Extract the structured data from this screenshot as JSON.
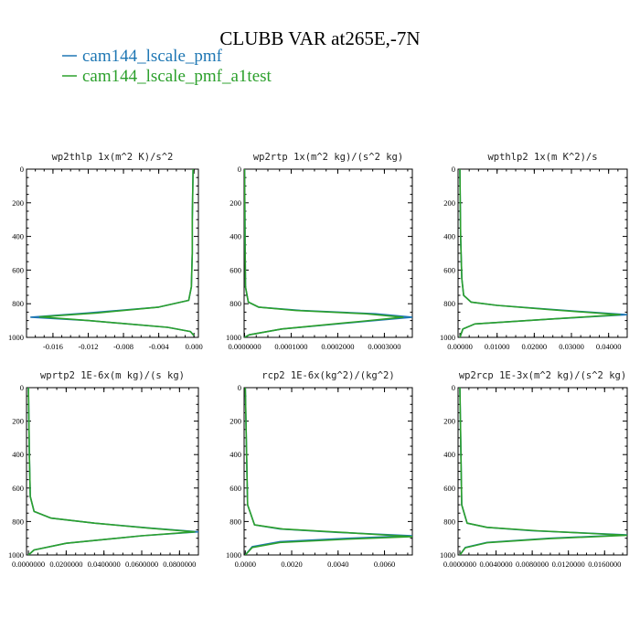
{
  "title": "CLUBB VAR at265E,-7N",
  "legend": [
    {
      "name": "cam144_lscale_pmf",
      "color": "#1f77b4"
    },
    {
      "name": "cam144_lscale_pmf_a1test",
      "color": "#2ca02c"
    }
  ],
  "chart_data": [
    {
      "type": "line",
      "title": "wp2thlp  1x(m^2 K)/s^2",
      "xlim": [
        -0.019,
        0.0005
      ],
      "ylim": [
        1000,
        0
      ],
      "y_inverted": true,
      "xticks": [
        -0.016,
        -0.012,
        -0.008,
        -0.004,
        0.0
      ],
      "xtick_labels": [
        "-0.016",
        "-0.012",
        "-0.008",
        "-0.004",
        "0.000"
      ],
      "yticks": [
        0,
        200,
        400,
        600,
        800,
        1000
      ],
      "ytick_labels": [
        "0",
        "200",
        "400",
        "600",
        "800",
        "1000"
      ],
      "series": [
        {
          "name": "cam144_lscale_pmf",
          "x": [
            -0.0001,
            -0.0002,
            -0.0002,
            -0.0003,
            -0.0006,
            -0.004,
            -0.012,
            -0.0185,
            -0.012,
            -0.003,
            -0.0004,
            0.0
          ],
          "y": [
            0,
            300,
            500,
            700,
            780,
            820,
            855,
            880,
            900,
            940,
            965,
            990
          ]
        },
        {
          "name": "cam144_lscale_pmf_a1test",
          "x": [
            -0.0001,
            -0.0002,
            -0.0002,
            -0.0003,
            -0.0006,
            -0.004,
            -0.011,
            -0.0175,
            -0.012,
            -0.003,
            -0.0004,
            0.0
          ],
          "y": [
            0,
            300,
            500,
            700,
            780,
            820,
            855,
            878,
            900,
            940,
            965,
            990
          ]
        }
      ]
    },
    {
      "type": "line",
      "title": "wp2rtp  1x(m^2 kg)/(s^2 kg)",
      "xlim": [
        -1e-06,
        0.00036
      ],
      "ylim": [
        1000,
        0
      ],
      "y_inverted": true,
      "xticks": [
        0.0,
        0.0001,
        0.0002,
        0.0003
      ],
      "xtick_labels": [
        "0.0000000",
        "0.0001000",
        "0.0002000",
        "0.0003000"
      ],
      "yticks": [
        0,
        200,
        400,
        600,
        800,
        1000
      ],
      "ytick_labels": [
        "0",
        "200",
        "400",
        "600",
        "800",
        "1000"
      ],
      "series": [
        {
          "name": "cam144_lscale_pmf",
          "x": [
            0.0,
            1e-06,
            2e-06,
            8e-06,
            3e-05,
            0.00012,
            0.00028,
            0.00036,
            0.00026,
            8e-05,
            1e-05,
            0.0
          ],
          "y": [
            0,
            400,
            700,
            790,
            820,
            840,
            860,
            880,
            905,
            950,
            985,
            1000
          ]
        },
        {
          "name": "cam144_lscale_pmf_a1test",
          "x": [
            0.0,
            1e-06,
            2e-06,
            8e-06,
            3e-05,
            0.00011,
            0.00026,
            0.00034,
            0.00025,
            8e-05,
            1e-05,
            0.0
          ],
          "y": [
            0,
            400,
            700,
            790,
            820,
            840,
            860,
            880,
            905,
            950,
            985,
            1000
          ]
        }
      ]
    },
    {
      "type": "line",
      "title": "wpthlp2  1x(m K^2)/s",
      "xlim": [
        -0.0005,
        0.045
      ],
      "ylim": [
        1000,
        0
      ],
      "y_inverted": true,
      "xticks": [
        0.0,
        0.01,
        0.02,
        0.03,
        0.04
      ],
      "xtick_labels": [
        "0.00000",
        "0.01000",
        "0.02000",
        "0.03000",
        "0.04000"
      ],
      "yticks": [
        0,
        200,
        400,
        600,
        800,
        1000
      ],
      "ytick_labels": [
        "0",
        "200",
        "400",
        "600",
        "800",
        "1000"
      ],
      "series": [
        {
          "name": "cam144_lscale_pmf",
          "x": [
            0.0,
            0.0002,
            0.0005,
            0.001,
            0.003,
            0.01,
            0.025,
            0.045,
            0.025,
            0.004,
            0.0008,
            0.0
          ],
          "y": [
            0,
            400,
            650,
            750,
            790,
            810,
            835,
            865,
            890,
            920,
            950,
            1000
          ]
        },
        {
          "name": "cam144_lscale_pmf_a1test",
          "x": [
            0.0,
            0.0002,
            0.0005,
            0.001,
            0.003,
            0.01,
            0.024,
            0.043,
            0.025,
            0.004,
            0.0008,
            0.0
          ],
          "y": [
            0,
            400,
            650,
            750,
            790,
            810,
            835,
            865,
            890,
            920,
            950,
            1000
          ]
        }
      ]
    },
    {
      "type": "line",
      "title": "wprtp2  1E-6x(m kg)/(s kg)",
      "xlim": [
        -0.001,
        0.09
      ],
      "ylim": [
        1000,
        0
      ],
      "y_inverted": true,
      "xticks": [
        0.0,
        0.02,
        0.04,
        0.06,
        0.08
      ],
      "xtick_labels": [
        "0.0000000",
        "0.0200000",
        "0.0400000",
        "0.0600000",
        "0.0800000"
      ],
      "yticks": [
        0,
        200,
        400,
        600,
        800,
        1000
      ],
      "ytick_labels": [
        "0",
        "200",
        "400",
        "600",
        "800",
        "1000"
      ],
      "series": [
        {
          "name": "cam144_lscale_pmf",
          "x": [
            0.0,
            0.0005,
            0.001,
            0.003,
            0.012,
            0.035,
            0.065,
            0.09,
            0.06,
            0.02,
            0.003,
            0.0
          ],
          "y": [
            0,
            400,
            650,
            740,
            780,
            810,
            840,
            862,
            885,
            930,
            970,
            1000
          ]
        },
        {
          "name": "cam144_lscale_pmf_a1test",
          "x": [
            0.0,
            0.0005,
            0.001,
            0.003,
            0.012,
            0.035,
            0.064,
            0.088,
            0.06,
            0.02,
            0.003,
            0.0
          ],
          "y": [
            0,
            400,
            650,
            740,
            780,
            810,
            840,
            862,
            885,
            930,
            970,
            1000
          ]
        }
      ]
    },
    {
      "type": "line",
      "title": "rcp2  1E-6x(kg^2)/(kg^2)",
      "xlim": [
        -5e-05,
        0.0072
      ],
      "ylim": [
        1000,
        0
      ],
      "y_inverted": true,
      "xticks": [
        0.0,
        0.002,
        0.004,
        0.006
      ],
      "xtick_labels": [
        "0.0000",
        "0.0020",
        "0.0040",
        "0.0060"
      ],
      "yticks": [
        0,
        200,
        400,
        600,
        800,
        1000
      ],
      "ytick_labels": [
        "0",
        "200",
        "400",
        "600",
        "800",
        "1000"
      ],
      "series": [
        {
          "name": "cam144_lscale_pmf",
          "x": [
            0.0,
            0.0001,
            0.0004,
            0.0015,
            0.004,
            0.0072,
            0.0045,
            0.0015,
            0.0003,
            0.0
          ],
          "y": [
            0,
            700,
            820,
            845,
            865,
            885,
            900,
            920,
            950,
            1000
          ]
        },
        {
          "name": "cam144_lscale_pmf_a1test",
          "x": [
            0.0,
            0.0001,
            0.0004,
            0.0016,
            0.0042,
            0.0072,
            0.0045,
            0.0015,
            0.0003,
            0.0
          ],
          "y": [
            0,
            700,
            820,
            845,
            865,
            890,
            905,
            925,
            955,
            1000
          ]
        }
      ]
    },
    {
      "type": "line",
      "title": "wp2rcp  1E-3x(m^2 kg)/(s^2 kg)",
      "xlim": [
        -0.0002,
        0.0185
      ],
      "ylim": [
        1000,
        0
      ],
      "y_inverted": true,
      "xticks": [
        0.0,
        0.004,
        0.008,
        0.012,
        0.016
      ],
      "xtick_labels": [
        "0.0000000",
        "0.0040000",
        "0.0080000",
        "0.0120000",
        "0.0160000"
      ],
      "yticks": [
        0,
        200,
        400,
        600,
        800,
        1000
      ],
      "ytick_labels": [
        "0",
        "200",
        "400",
        "600",
        "800",
        "1000"
      ],
      "series": [
        {
          "name": "cam144_lscale_pmf",
          "x": [
            0.0,
            0.0002,
            0.0008,
            0.003,
            0.008,
            0.0185,
            0.01,
            0.003,
            0.0006,
            0.0
          ],
          "y": [
            0,
            700,
            810,
            835,
            855,
            880,
            900,
            925,
            955,
            1000
          ]
        },
        {
          "name": "cam144_lscale_pmf_a1test",
          "x": [
            0.0,
            0.0002,
            0.0008,
            0.003,
            0.0085,
            0.0185,
            0.01,
            0.003,
            0.0006,
            0.0
          ],
          "y": [
            0,
            700,
            810,
            835,
            855,
            882,
            902,
            927,
            957,
            1000
          ]
        }
      ]
    }
  ]
}
